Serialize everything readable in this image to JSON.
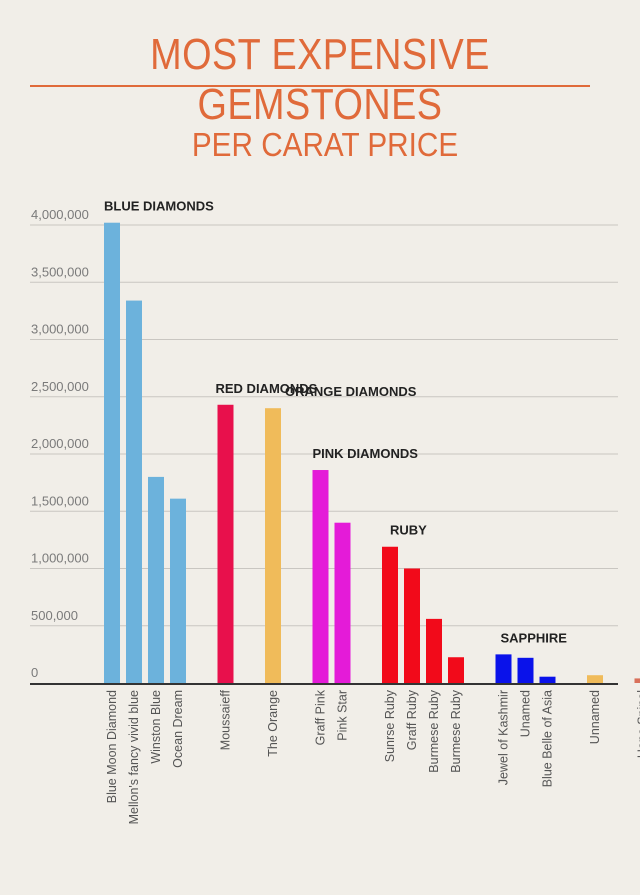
{
  "header": {
    "title": "MOST EXPENSIVE GEMSTONES",
    "subtitle": "PER CARAT PRICE"
  },
  "chart_data": {
    "type": "bar",
    "title": "MOST EXPENSIVE GEMSTONES",
    "subtitle": "PER CARAT PRICE",
    "xlabel": "",
    "ylabel": "",
    "ylim": [
      0,
      4000000
    ],
    "yticks": [
      0,
      500000,
      1000000,
      1500000,
      2000000,
      2500000,
      3000000,
      3500000,
      4000000
    ],
    "ytick_labels": [
      "0",
      "500,000",
      "1,000,000",
      "1,500,000",
      "2,000,000",
      "2,500,000",
      "3,000,000",
      "3,500,000",
      "4,000,000"
    ],
    "grid": true,
    "groups": [
      {
        "name": "BLUE DIAMONDS",
        "color": "#6cb2dc",
        "items": [
          {
            "label": "Blue Moon Diamond",
            "value": 4020000
          },
          {
            "label": "Mellon's fancy vivid blue",
            "value": 3340000
          },
          {
            "label": "Winston Blue",
            "value": 1800000
          },
          {
            "label": "Ocean Dream",
            "value": 1610000
          }
        ]
      },
      {
        "name": "RED DIAMONDS",
        "color": "#e8104c",
        "items": [
          {
            "label": "Moussaieff",
            "value": 2430000
          }
        ]
      },
      {
        "name": "ORANGE DIAMONDS",
        "color": "#f0bb5a",
        "items": [
          {
            "label": "The Orange",
            "value": 2400000
          }
        ]
      },
      {
        "name": "PINK DIAMONDS",
        "color": "#e41bd8",
        "items": [
          {
            "label": "Graff Pink",
            "value": 1860000
          },
          {
            "label": "Pink Star",
            "value": 1400000
          }
        ]
      },
      {
        "name": "RUBY",
        "color": "#f20a1a",
        "items": [
          {
            "label": "Sunrse Ruby",
            "value": 1190000
          },
          {
            "label": "Graff Ruby",
            "value": 1000000
          },
          {
            "label": "Burmese Ruby",
            "value": 560000
          },
          {
            "label": "Burmese Ruby",
            "value": 225000
          }
        ]
      },
      {
        "name": "SAPPHIRE",
        "color": "#0a12ea",
        "items": [
          {
            "label": "Jewel of Kashmir",
            "value": 250000
          },
          {
            "label": "Unamed",
            "value": 220000
          },
          {
            "label": "Blue Belle of Asia",
            "value": 55000
          }
        ]
      },
      {
        "name": "",
        "color": "#f0bb5a",
        "items": [
          {
            "label": "Unnamed",
            "value": 68000
          }
        ]
      },
      {
        "name": "",
        "color": "#d9705a",
        "items": [
          {
            "label": "Hope Spinel",
            "value": 40000
          }
        ]
      }
    ]
  }
}
